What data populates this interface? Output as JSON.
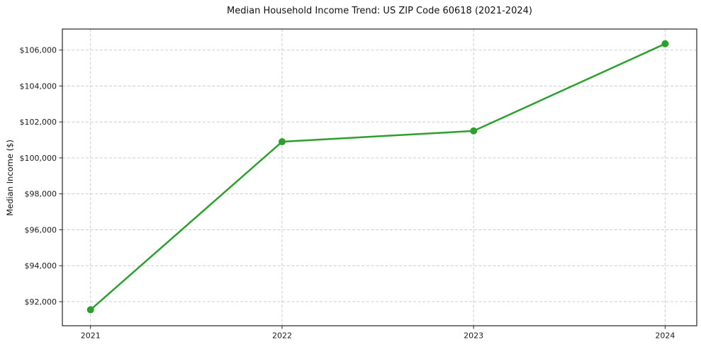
{
  "chart_data": {
    "type": "line",
    "title": "Median Household Income Trend: US ZIP Code 60618 (2021-2024)",
    "xlabel": "",
    "ylabel": "Median Income ($)",
    "categories": [
      "2021",
      "2022",
      "2023",
      "2024"
    ],
    "x_numeric": [
      2021,
      2022,
      2023,
      2024
    ],
    "values": [
      91550,
      100900,
      101500,
      106350
    ],
    "xlim": [
      2020.853,
      2024.165
    ],
    "ylim": [
      90660,
      107170
    ],
    "y_tick_values": [
      92000,
      94000,
      96000,
      98000,
      100000,
      102000,
      104000,
      106000
    ],
    "y_tick_labels": [
      "$92,000",
      "$94,000",
      "$96,000",
      "$98,000",
      "$100,000",
      "$102,000",
      "$104,000",
      "$106,000"
    ],
    "grid": true,
    "grid_style": "dashed",
    "legend": false,
    "marker": "circle",
    "colors": {
      "line": "#2ca02c",
      "grid": "#cccccc",
      "axis": "#262626",
      "text": "#1a1a1a",
      "background": "#ffffff"
    }
  }
}
